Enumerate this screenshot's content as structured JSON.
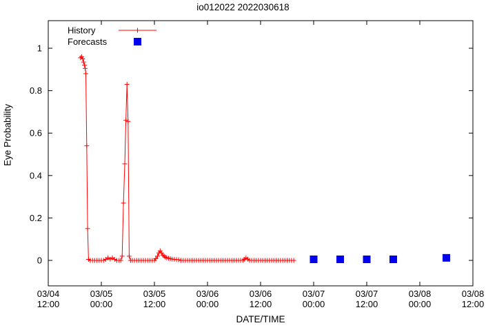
{
  "chart_data": {
    "type": "line",
    "title": "io012022 2022030618",
    "xlabel": "DATE/TIME",
    "ylabel": "Eye Probability",
    "grid": false,
    "legend_position": "top-left-inside",
    "xlim": [
      0,
      96
    ],
    "ylim": [
      -0.12,
      1.13
    ],
    "x_unit": "hours from 03/04 12:00",
    "y_ticks": [
      0,
      0.2,
      0.4,
      0.6,
      0.8,
      1
    ],
    "x_ticks": [
      {
        "t": 0,
        "date": "03/04",
        "time": "12:00"
      },
      {
        "t": 12,
        "date": "03/05",
        "time": "00:00"
      },
      {
        "t": 24,
        "date": "03/05",
        "time": "12:00"
      },
      {
        "t": 36,
        "date": "03/06",
        "time": "00:00"
      },
      {
        "t": 48,
        "date": "03/06",
        "time": "12:00"
      },
      {
        "t": 60,
        "date": "03/07",
        "time": "00:00"
      },
      {
        "t": 72,
        "date": "03/07",
        "time": "12:00"
      },
      {
        "t": 84,
        "date": "03/08",
        "time": "00:00"
      },
      {
        "t": 96,
        "date": "03/08",
        "time": "12:00"
      }
    ],
    "series": [
      {
        "name": "History",
        "style": "line+plus",
        "color": "#ff0000",
        "points": [
          [
            7.3,
            0.955
          ],
          [
            7.55,
            0.96
          ],
          [
            7.8,
            0.95
          ],
          [
            8.0,
            0.935
          ],
          [
            8.2,
            0.92
          ],
          [
            8.35,
            0.905
          ],
          [
            8.5,
            0.88
          ],
          [
            8.7,
            0.54
          ],
          [
            8.9,
            0.15
          ],
          [
            9.1,
            0.005
          ],
          [
            9.5,
            0
          ],
          [
            10,
            0
          ],
          [
            10.5,
            0
          ],
          [
            11,
            0
          ],
          [
            11.5,
            0
          ],
          [
            12,
            0
          ],
          [
            12.5,
            0
          ],
          [
            13,
            0.005
          ],
          [
            13.5,
            0.012
          ],
          [
            14,
            0.006
          ],
          [
            14.5,
            0.012
          ],
          [
            15,
            0.005
          ],
          [
            15.5,
            0
          ],
          [
            16,
            0
          ],
          [
            16.4,
            0
          ],
          [
            16.7,
            0.02
          ],
          [
            17.0,
            0.27
          ],
          [
            17.3,
            0.455
          ],
          [
            17.55,
            0.66
          ],
          [
            17.8,
            0.83
          ],
          [
            18.05,
            0.655
          ],
          [
            18.3,
            0.02
          ],
          [
            18.6,
            0
          ],
          [
            19,
            0
          ],
          [
            19.5,
            0
          ],
          [
            20,
            0
          ],
          [
            20.5,
            0
          ],
          [
            21,
            0
          ],
          [
            21.5,
            0
          ],
          [
            22,
            0
          ],
          [
            22.5,
            0
          ],
          [
            23,
            0
          ],
          [
            23.5,
            0
          ],
          [
            24,
            0
          ],
          [
            24.3,
            0.008
          ],
          [
            24.7,
            0.02
          ],
          [
            25.0,
            0.035
          ],
          [
            25.3,
            0.045
          ],
          [
            25.6,
            0.035
          ],
          [
            25.9,
            0.025
          ],
          [
            26.2,
            0.02
          ],
          [
            26.5,
            0.015
          ],
          [
            26.8,
            0.012
          ],
          [
            27.2,
            0.01
          ],
          [
            27.6,
            0.008
          ],
          [
            28,
            0.006
          ],
          [
            28.5,
            0.005
          ],
          [
            29,
            0.004
          ],
          [
            29.5,
            0.003
          ],
          [
            30,
            0
          ],
          [
            30.5,
            0
          ],
          [
            31,
            0
          ],
          [
            31.5,
            0
          ],
          [
            32,
            0
          ],
          [
            32.5,
            0
          ],
          [
            33,
            0
          ],
          [
            33.5,
            0
          ],
          [
            34,
            0
          ],
          [
            34.5,
            0
          ],
          [
            35,
            0
          ],
          [
            35.5,
            0
          ],
          [
            36,
            0
          ],
          [
            36.5,
            0
          ],
          [
            37,
            0
          ],
          [
            37.5,
            0
          ],
          [
            38,
            0
          ],
          [
            38.5,
            0
          ],
          [
            39,
            0
          ],
          [
            39.5,
            0
          ],
          [
            40,
            0
          ],
          [
            40.5,
            0
          ],
          [
            41,
            0
          ],
          [
            41.5,
            0
          ],
          [
            42,
            0
          ],
          [
            42.5,
            0
          ],
          [
            43,
            0
          ],
          [
            43.5,
            0
          ],
          [
            44,
            0
          ],
          [
            44.3,
            0.005
          ],
          [
            44.7,
            0.012
          ],
          [
            45.1,
            0.006
          ],
          [
            45.5,
            0
          ],
          [
            46,
            0
          ],
          [
            46.5,
            0
          ],
          [
            47,
            0
          ],
          [
            47.5,
            0
          ],
          [
            48,
            0
          ],
          [
            48.5,
            0
          ],
          [
            49,
            0
          ],
          [
            49.5,
            0
          ],
          [
            50,
            0
          ],
          [
            50.5,
            0
          ],
          [
            51,
            0
          ],
          [
            51.5,
            0
          ],
          [
            52,
            0
          ],
          [
            52.5,
            0
          ],
          [
            53,
            0
          ],
          [
            53.5,
            0
          ],
          [
            54,
            0
          ],
          [
            54.5,
            0
          ],
          [
            55,
            0
          ],
          [
            55.5,
            0
          ]
        ]
      },
      {
        "name": "Forecasts",
        "style": "squares",
        "color": "#0000ee",
        "points": [
          [
            60,
            0.005
          ],
          [
            66,
            0.005
          ],
          [
            72,
            0.005
          ],
          [
            78,
            0.005
          ],
          [
            90,
            0.012
          ]
        ]
      }
    ]
  }
}
